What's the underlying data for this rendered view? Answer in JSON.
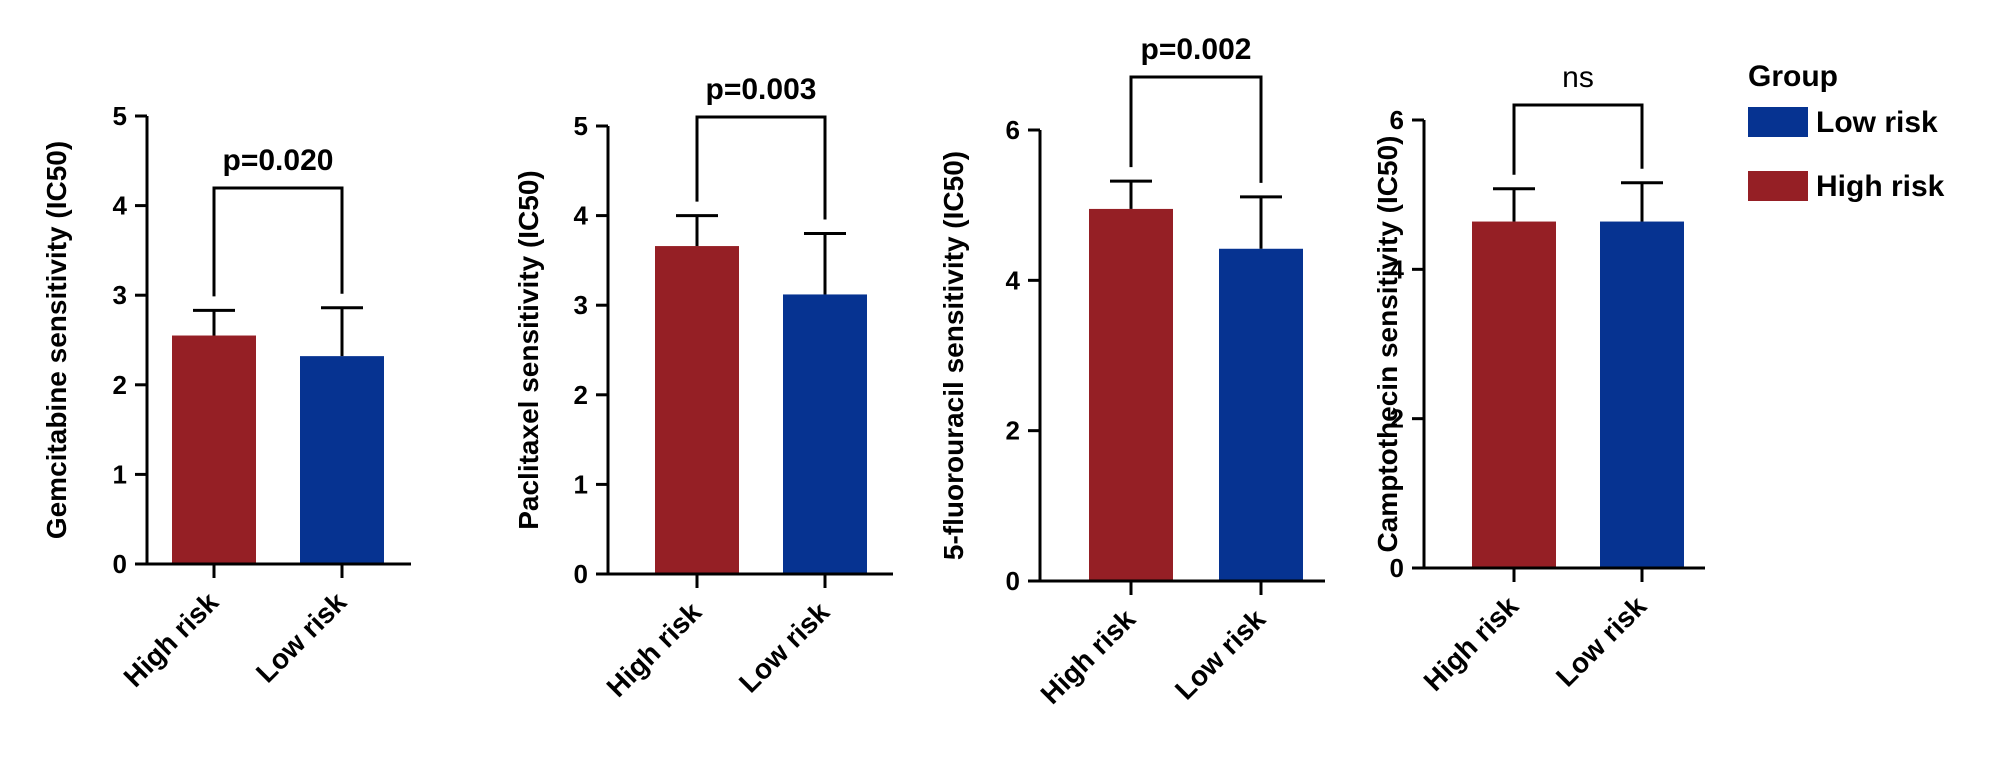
{
  "colors": {
    "high": "#951f25",
    "low": "#063391",
    "axis": "#000000"
  },
  "legend": {
    "title": "Group",
    "items": [
      {
        "label": "Low risk",
        "color": "#063391"
      },
      {
        "label": "High risk",
        "color": "#951f25"
      }
    ]
  },
  "chart_data": [
    {
      "type": "bar",
      "ylabel": "Gemcitabine sensitivity (IC50)",
      "categories": [
        "High risk",
        "Low risk"
      ],
      "values": [
        2.55,
        2.32
      ],
      "error_upper": [
        2.83,
        2.86
      ],
      "ylim": [
        0,
        5
      ],
      "yticks": [
        "0",
        "1",
        "2",
        "3",
        "4",
        "5"
      ],
      "significance": "p=0.020"
    },
    {
      "type": "bar",
      "ylabel": "Paclitaxel sensitivity (IC50)",
      "categories": [
        "High risk",
        "Low risk"
      ],
      "values": [
        3.66,
        3.12
      ],
      "error_upper": [
        4.0,
        3.8
      ],
      "ylim": [
        0,
        5
      ],
      "yticks": [
        "0",
        "1",
        "2",
        "3",
        "4",
        "5"
      ],
      "significance": "p=0.003"
    },
    {
      "type": "bar",
      "ylabel": "5-fluorouracil sensitivity (IC50)",
      "categories": [
        "High risk",
        "Low risk"
      ],
      "values": [
        4.95,
        4.42
      ],
      "error_upper": [
        5.32,
        5.11
      ],
      "ylim": [
        0,
        6
      ],
      "yticks": [
        "0",
        "2",
        "4",
        "6"
      ],
      "significance": "p=0.002"
    },
    {
      "type": "bar",
      "ylabel": "Camptothecin sensitivity (IC50)",
      "categories": [
        "High risk",
        "Low risk"
      ],
      "values": [
        4.64,
        4.64
      ],
      "error_upper": [
        5.08,
        5.16
      ],
      "ylim": [
        0,
        6
      ],
      "yticks": [
        "0",
        "2",
        "4",
        "6"
      ],
      "significance": "ns"
    }
  ]
}
